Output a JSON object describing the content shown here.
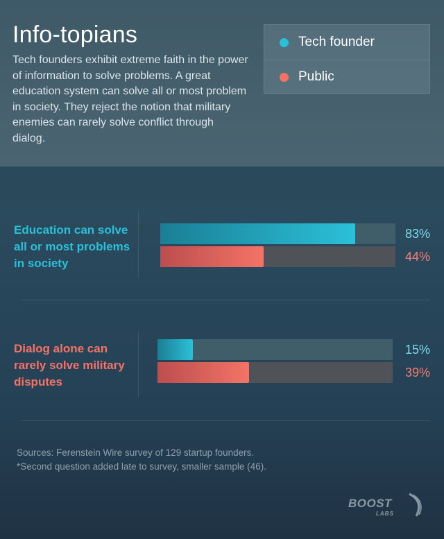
{
  "title": "Info-topians",
  "description": "Tech founders exhibit extreme faith in the power of information to solve problems. A great education system can solve all or most problem in society. They reject the notion that military enemies can rarely solve conflict through dialog.",
  "colors": {
    "tech_founder": "#2bc0d9",
    "public": "#f47366",
    "tech_pct_text": "#7fd9ea",
    "public_pct_text": "#f47e74"
  },
  "legend": [
    {
      "label": "Tech founder",
      "color": "#2bc0d9"
    },
    {
      "label": "Public",
      "color": "#f47366"
    }
  ],
  "chart_data": {
    "type": "bar",
    "orientation": "horizontal",
    "categories": [
      "Education can solve all or most problems in society",
      "Dialog alone can rarely solve military disputes"
    ],
    "series": [
      {
        "name": "Tech founder",
        "values": [
          83,
          15
        ]
      },
      {
        "name": "Public",
        "values": [
          44,
          39
        ]
      }
    ],
    "value_labels": [
      [
        "83%",
        "44%"
      ],
      [
        "15%",
        "39%"
      ]
    ],
    "xlim": [
      0,
      100
    ],
    "legend_position": "top-right",
    "grid": false
  },
  "sources": {
    "line1": "Sources:  Ferenstein Wire survey of 129 startup founders.",
    "line2": "*Second question added late to survey, smaller sample (46)."
  },
  "logo": {
    "main": "BOOST",
    "sub": "LABS",
    "icon": "boost-swoosh-icon"
  }
}
